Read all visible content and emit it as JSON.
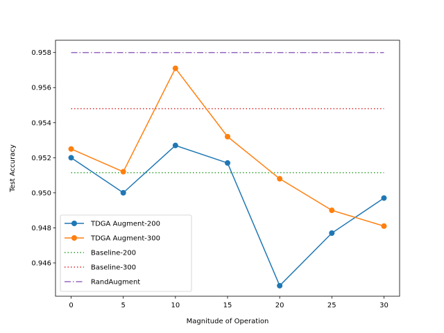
{
  "chart_data": {
    "type": "line",
    "title": "",
    "xlabel": "Magnitude of Operation",
    "ylabel": "Test Accuracy",
    "x": [
      0,
      5,
      10,
      15,
      20,
      25,
      30
    ],
    "xticks": [
      "0",
      "5",
      "10",
      "15",
      "20",
      "25",
      "30"
    ],
    "yticks": [
      "0.946",
      "0.948",
      "0.950",
      "0.952",
      "0.954",
      "0.956",
      "0.958"
    ],
    "xlim": [
      -1.5,
      31.5
    ],
    "ylim": [
      0.9441,
      0.9587
    ],
    "grid": false,
    "legend_position": "lower-left",
    "series": [
      {
        "name": "TDGA Augment-200",
        "style": "solid-marker",
        "color": "#1f77b4",
        "values": [
          0.952,
          0.95,
          0.9527,
          0.9517,
          0.9447,
          0.9477,
          0.9497
        ]
      },
      {
        "name": "TDGA Augment-300",
        "style": "solid-marker",
        "color": "#ff7f0e",
        "values": [
          0.9525,
          0.9512,
          0.9571,
          0.9532,
          0.9508,
          0.949,
          0.9481
        ]
      },
      {
        "name": "Baseline-200",
        "style": "dotted",
        "color": "#2ca02c",
        "values": [
          0.95115,
          0.95115,
          0.95115,
          0.95115,
          0.95115,
          0.95115,
          0.95115
        ]
      },
      {
        "name": "Baseline-300",
        "style": "dotted",
        "color": "#d62728",
        "values": [
          0.9548,
          0.9548,
          0.9548,
          0.9548,
          0.9548,
          0.9548,
          0.9548
        ]
      },
      {
        "name": "RandAugment",
        "style": "dashdot",
        "color": "#9467bd",
        "values": [
          0.958,
          0.958,
          0.958,
          0.958,
          0.958,
          0.958,
          0.958
        ]
      }
    ]
  }
}
